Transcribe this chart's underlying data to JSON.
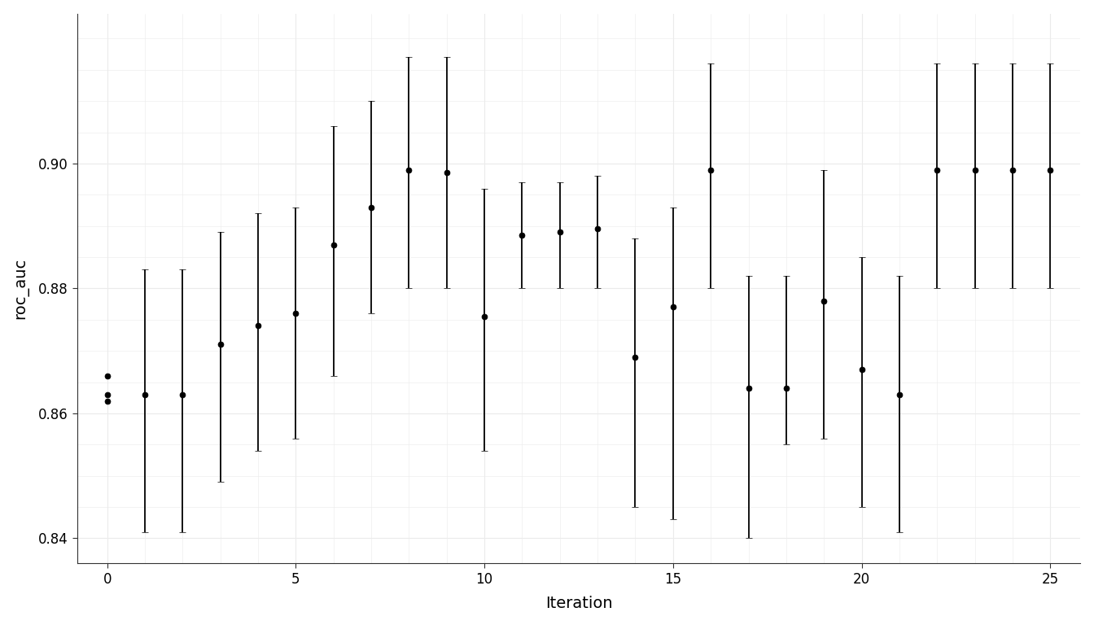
{
  "points": [
    [
      0,
      0.866,
      0.866,
      0.866
    ],
    [
      0,
      0.863,
      0.863,
      0.863
    ],
    [
      0,
      0.862,
      0.862,
      0.862
    ],
    [
      1,
      0.863,
      0.841,
      0.883
    ],
    [
      2,
      0.863,
      0.841,
      0.883
    ],
    [
      3,
      0.871,
      0.849,
      0.889
    ],
    [
      4,
      0.874,
      0.854,
      0.892
    ],
    [
      5,
      0.876,
      0.856,
      0.893
    ],
    [
      6,
      0.887,
      0.866,
      0.906
    ],
    [
      7,
      0.893,
      0.876,
      0.91
    ],
    [
      8,
      0.899,
      0.88,
      0.917
    ],
    [
      9,
      0.8985,
      0.88,
      0.917
    ],
    [
      10,
      0.8755,
      0.854,
      0.896
    ],
    [
      11,
      0.8885,
      0.88,
      0.897
    ],
    [
      12,
      0.889,
      0.88,
      0.897
    ],
    [
      13,
      0.8895,
      0.88,
      0.898
    ],
    [
      14,
      0.869,
      0.845,
      0.888
    ],
    [
      15,
      0.877,
      0.843,
      0.893
    ],
    [
      16,
      0.899,
      0.88,
      0.916
    ],
    [
      17,
      0.864,
      0.84,
      0.882
    ],
    [
      18,
      0.864,
      0.855,
      0.882
    ],
    [
      19,
      0.878,
      0.856,
      0.899
    ],
    [
      20,
      0.867,
      0.845,
      0.885
    ],
    [
      21,
      0.863,
      0.841,
      0.882
    ],
    [
      22,
      0.899,
      0.88,
      0.916
    ],
    [
      23,
      0.899,
      0.88,
      0.916
    ],
    [
      24,
      0.899,
      0.88,
      0.916
    ],
    [
      25,
      0.899,
      0.88,
      0.916
    ]
  ],
  "background_color": "#ffffff",
  "panel_background": "#ffffff",
  "grid_color": "#ebebeb",
  "point_color": "#000000",
  "line_color": "#000000",
  "xlabel": "Iteration",
  "ylabel": "roc_auc",
  "xlim": [
    -0.8,
    25.8
  ],
  "ylim": [
    0.836,
    0.924
  ],
  "yticks": [
    0.84,
    0.86,
    0.88,
    0.9
  ],
  "xticks": [
    0,
    5,
    10,
    15,
    20,
    25
  ],
  "title_fontsize": 14,
  "axis_label_fontsize": 14,
  "tick_label_fontsize": 12,
  "point_size": 5,
  "capsize": 3,
  "elinewidth": 1.3,
  "capthick": 1.3
}
